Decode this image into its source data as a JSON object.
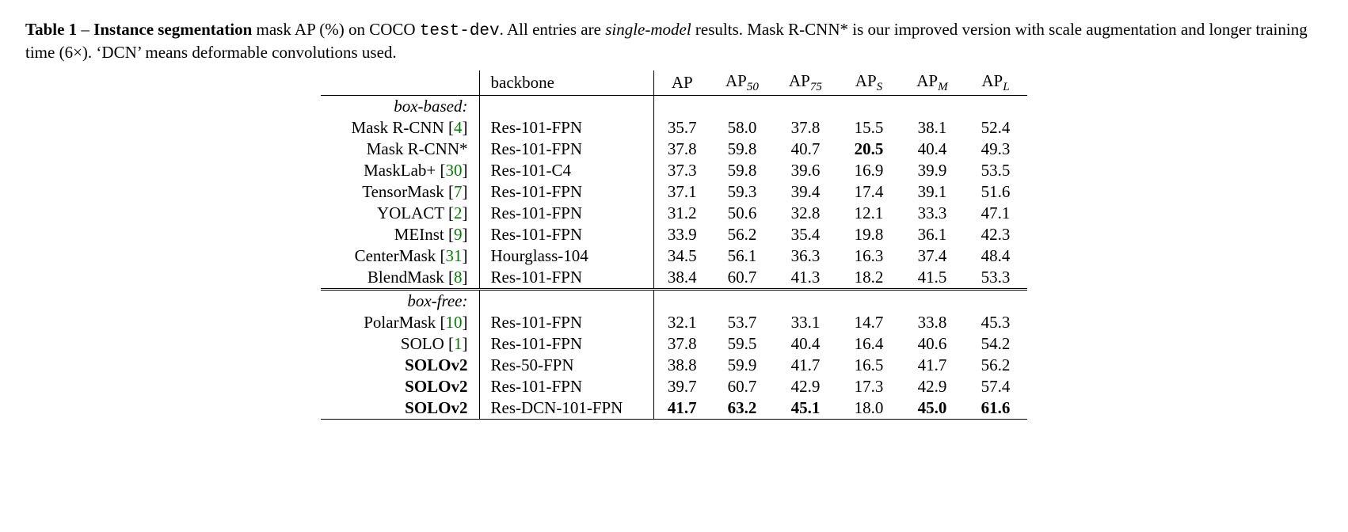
{
  "caption": {
    "label": "Table 1",
    "sep": " – ",
    "title_bold": "Instance segmentation",
    "rest_1": " mask AP (%) on COCO ",
    "code": "test-dev",
    "rest_2": ". All entries are ",
    "italic": "single-model",
    "rest_3": " results. Mask R-CNN",
    "star": "*",
    "rest_4": " is our improved version with scale augmentation and longer training time (6×). ‘DCN’ means deformable convolutions used."
  },
  "headers": {
    "backbone": "backbone",
    "ap": "AP",
    "ap50_pre": "AP",
    "ap50_sub": "50",
    "ap75_pre": "AP",
    "ap75_sub": "75",
    "aps_pre": "AP",
    "aps_sub": "S",
    "apm_pre": "AP",
    "apm_sub": "M",
    "apl_pre": "AP",
    "apl_sub": "L"
  },
  "sections": {
    "box_based": "box-based:",
    "box_free": "box-free:"
  },
  "rows": {
    "r1": {
      "method": "Mask R-CNN ",
      "cite": "4",
      "backbone": "Res-101-FPN",
      "ap": "35.7",
      "ap50": "58.0",
      "ap75": "37.8",
      "aps": "15.5",
      "apm": "38.1",
      "apl": "52.4"
    },
    "r2": {
      "method": "Mask R-CNN*",
      "backbone": "Res-101-FPN",
      "ap": "37.8",
      "ap50": "59.8",
      "ap75": "40.7",
      "aps": "20.5",
      "aps_bold": true,
      "apm": "40.4",
      "apl": "49.3"
    },
    "r3": {
      "method": "MaskLab+ ",
      "cite": "30",
      "backbone": "Res-101-C4",
      "ap": "37.3",
      "ap50": "59.8",
      "ap75": "39.6",
      "aps": "16.9",
      "apm": "39.9",
      "apl": "53.5"
    },
    "r4": {
      "method": "TensorMask ",
      "cite": "7",
      "backbone": "Res-101-FPN",
      "ap": "37.1",
      "ap50": "59.3",
      "ap75": "39.4",
      "aps": "17.4",
      "apm": "39.1",
      "apl": "51.6"
    },
    "r5": {
      "method": "YOLACT ",
      "cite": "2",
      "backbone": "Res-101-FPN",
      "ap": "31.2",
      "ap50": "50.6",
      "ap75": "32.8",
      "aps": "12.1",
      "apm": "33.3",
      "apl": "47.1"
    },
    "r6": {
      "method": "MEInst ",
      "cite": "9",
      "backbone": "Res-101-FPN",
      "ap": "33.9",
      "ap50": "56.2",
      "ap75": "35.4",
      "aps": "19.8",
      "apm": "36.1",
      "apl": "42.3"
    },
    "r7": {
      "method": "CenterMask ",
      "cite": "31",
      "backbone": "Hourglass-104",
      "ap": "34.5",
      "ap50": "56.1",
      "ap75": "36.3",
      "aps": "16.3",
      "apm": "37.4",
      "apl": "48.4"
    },
    "r8": {
      "method": "BlendMask ",
      "cite": "8",
      "backbone": "Res-101-FPN",
      "ap": "38.4",
      "ap50": "60.7",
      "ap75": "41.3",
      "aps": "18.2",
      "apm": "41.5",
      "apl": "53.3"
    },
    "r9": {
      "method": "PolarMask ",
      "cite": "10",
      "backbone": "Res-101-FPN",
      "ap": "32.1",
      "ap50": "53.7",
      "ap75": "33.1",
      "aps": "14.7",
      "apm": "33.8",
      "apl": "45.3"
    },
    "r10": {
      "method": "SOLO ",
      "cite": "1",
      "backbone": "Res-101-FPN",
      "ap": "37.8",
      "ap50": "59.5",
      "ap75": "40.4",
      "aps": "16.4",
      "apm": "40.6",
      "apl": "54.2"
    },
    "r11": {
      "method": "SOLOv2",
      "bold": true,
      "backbone": "Res-50-FPN",
      "ap": "38.8",
      "ap50": "59.9",
      "ap75": "41.7",
      "aps": "16.5",
      "apm": "41.7",
      "apl": "56.2"
    },
    "r12": {
      "method": "SOLOv2",
      "bold": true,
      "backbone": "Res-101-FPN",
      "ap": "39.7",
      "ap50": "60.7",
      "ap75": "42.9",
      "aps": "17.3",
      "apm": "42.9",
      "apl": "57.4"
    },
    "r13": {
      "method": "SOLOv2",
      "bold": true,
      "backbone": "Res-DCN-101-FPN",
      "ap": "41.7",
      "ap_bold": true,
      "ap50": "63.2",
      "ap50_bold": true,
      "ap75": "45.1",
      "ap75_bold": true,
      "aps": "18.0",
      "apm": "45.0",
      "apm_bold": true,
      "apl": "61.6",
      "apl_bold": true
    }
  },
  "style": {
    "cite_color": "#008000",
    "col_widths": {
      "method": 200,
      "backbone": 220,
      "num": 80
    }
  }
}
